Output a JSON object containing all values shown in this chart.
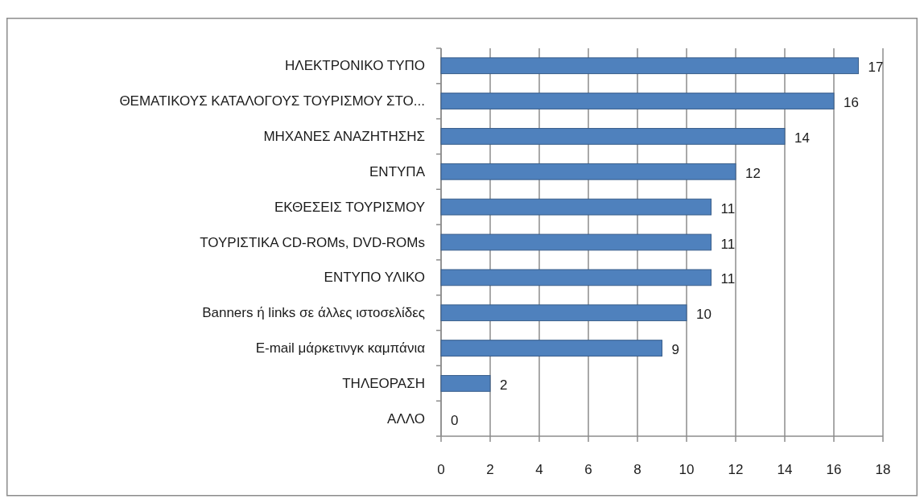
{
  "chart_data": {
    "type": "bar",
    "orientation": "horizontal",
    "categories": [
      "ΗΛΕΚΤΡΟΝΙΚΟ ΤΥΠΟ",
      "ΘΕΜΑΤΙΚΟΥΣ ΚΑΤΑΛΟΓΟΥΣ ΤΟΥΡΙΣΜΟΥ ΣΤΟ...",
      "ΜΗΧΑΝΕΣ ΑΝΑΖΗΤΗΣΗΣ",
      "ΕΝΤΥΠΑ",
      "ΕΚΘΕΣΕΙΣ ΤΟΥΡΙΣΜΟΥ",
      "ΤΟΥΡΙΣΤΙΚΑ CD-ROMs, DVD-ROMs",
      "ΕΝΤΥΠΟ ΥΛΙΚΟ",
      "Banners ή links σε άλλες ιστοσελίδες",
      "E-mail μάρκετινγκ καμπάνια",
      "ΤΗΛΕΟΡΑΣΗ",
      "ΑΛΛΟ"
    ],
    "values": [
      17,
      16,
      14,
      12,
      11,
      11,
      11,
      10,
      9,
      2,
      0
    ],
    "color": "#4f81bd",
    "xlim": [
      0,
      18
    ],
    "xticks": [
      0,
      2,
      4,
      6,
      8,
      10,
      12,
      14,
      16,
      18
    ],
    "grid": "x",
    "data_labels": true
  }
}
